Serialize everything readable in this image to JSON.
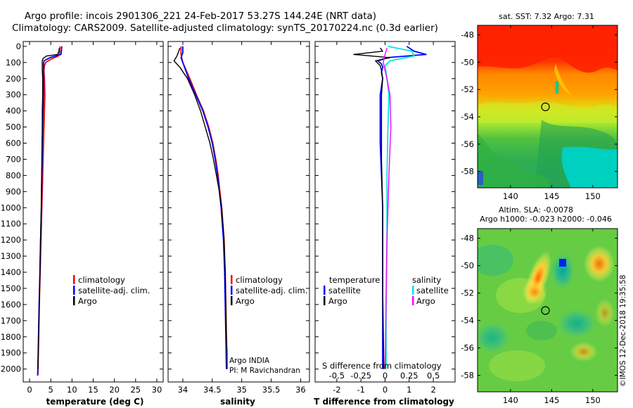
{
  "titles": {
    "line1": "Argo profile: incois 2901306_221 24-Feb-2017 53.27S 144.24E (NRT data)",
    "line2": "Climatology: CARS2009. Satellite-adjusted climatology: synTS_20170224.nc (0.3d earlier)"
  },
  "colors": {
    "climatology": "#ff0000",
    "satellite": "#0000ff",
    "argo": "#000000",
    "salinity_satellite": "#00e5e5",
    "salinity_argo": "#ff00ff"
  },
  "depth_axis": {
    "ticks": [
      0,
      100,
      200,
      300,
      400,
      500,
      600,
      700,
      800,
      900,
      1000,
      1100,
      1200,
      1300,
      1400,
      1500,
      1600,
      1700,
      1800,
      1900,
      2000
    ],
    "labels": [
      "0",
      "100",
      "200",
      "300",
      "400",
      "500",
      "600",
      "700",
      "800",
      "900",
      "1000",
      "1100",
      "1200",
      "1300",
      "1400",
      "1500",
      "1600",
      "1700",
      "1800",
      "1900",
      "2000"
    ],
    "range": [
      -30,
      2080
    ]
  },
  "chart_data": [
    {
      "type": "line",
      "id": "temperature",
      "xlabel": "temperature (deg C)",
      "xlim": [
        -1.5,
        31.5
      ],
      "xticks": [
        0,
        5,
        10,
        15,
        20,
        25,
        30
      ],
      "xtick_labels": [
        "0",
        "5",
        "10",
        "15",
        "20",
        "25",
        "30"
      ],
      "legend": [
        "climatology",
        "satellite-adj. clim.",
        "Argo"
      ],
      "series": [
        {
          "name": "climatology",
          "color": "#ff0000",
          "depth": [
            0,
            40,
            60,
            80,
            100,
            120,
            150,
            200,
            300,
            400,
            500,
            600,
            700,
            800,
            1000,
            1200,
            1400,
            1500,
            1600,
            1800,
            2000,
            2040
          ],
          "values": [
            7.2,
            7.1,
            6.8,
            5.0,
            3.8,
            3.5,
            3.4,
            3.5,
            3.6,
            3.5,
            3.4,
            3.3,
            3.2,
            3.1,
            2.9,
            2.7,
            2.5,
            2.4,
            2.3,
            2.15,
            2.0,
            1.95
          ]
        },
        {
          "name": "satellite-adj. clim.",
          "color": "#0000ff",
          "depth": [
            0,
            30,
            50,
            70,
            90,
            110,
            150,
            200,
            300,
            400,
            500,
            600,
            700,
            800,
            1000,
            1200,
            1400,
            1500,
            1600,
            1800,
            2000,
            2040
          ],
          "values": [
            7.6,
            7.5,
            7.4,
            4.8,
            3.4,
            3.3,
            3.3,
            3.3,
            3.3,
            3.2,
            3.1,
            3.0,
            3.0,
            2.9,
            2.8,
            2.6,
            2.45,
            2.35,
            2.25,
            2.1,
            1.95,
            1.9
          ]
        },
        {
          "name": "Argo",
          "color": "#000000",
          "depth": [
            10,
            30,
            50,
            60,
            75,
            90,
            110,
            150,
            200,
            300,
            400,
            500,
            700,
            1000,
            1300,
            1600,
            1900,
            2000
          ],
          "values": [
            7.0,
            6.9,
            6.6,
            4.0,
            3.2,
            3.0,
            3.0,
            3.0,
            3.1,
            3.1,
            3.0,
            3.0,
            2.9,
            2.75,
            2.5,
            2.3,
            2.05,
            2.0
          ]
        }
      ]
    },
    {
      "type": "line",
      "id": "salinity",
      "xlabel": "salinity",
      "xlim": [
        33.75,
        36.15
      ],
      "xticks": [
        34,
        34.5,
        35,
        35.5,
        36
      ],
      "xtick_labels": [
        "34",
        "34.5",
        "35",
        "35.5",
        "36"
      ],
      "legend": [
        "climatology",
        "satellite-adj. clim.",
        "Argo"
      ],
      "notes": [
        "Argo INDIA",
        "PI: M Ravichandran"
      ],
      "series": [
        {
          "name": "climatology",
          "color": "#ff0000",
          "depth": [
            0,
            50,
            100,
            200,
            300,
            400,
            500,
            600,
            700,
            800,
            1000,
            1200,
            1400,
            1600,
            1800,
            2000
          ],
          "values": [
            33.97,
            33.97,
            34.0,
            34.12,
            34.23,
            34.35,
            34.44,
            34.51,
            34.56,
            34.6,
            34.66,
            34.7,
            34.72,
            34.73,
            34.74,
            34.75
          ]
        },
        {
          "name": "satellite-adj. clim.",
          "color": "#0000ff",
          "depth": [
            0,
            40,
            70,
            100,
            200,
            300,
            400,
            500,
            600,
            700,
            800,
            1000,
            1200,
            1400,
            1600,
            1800,
            2000
          ],
          "values": [
            34.0,
            34.0,
            33.97,
            34.0,
            34.1,
            34.22,
            34.34,
            34.43,
            34.5,
            34.55,
            34.59,
            34.65,
            34.69,
            34.71,
            34.72,
            34.73,
            34.74
          ]
        },
        {
          "name": "Argo",
          "color": "#000000",
          "depth": [
            10,
            60,
            90,
            130,
            200,
            300,
            400,
            500,
            600,
            700,
            800,
            900,
            1000,
            1200,
            1400,
            1600,
            1800,
            1900,
            2000
          ],
          "values": [
            33.95,
            33.9,
            33.85,
            33.95,
            34.08,
            34.2,
            34.3,
            34.38,
            34.46,
            34.52,
            34.57,
            34.62,
            34.66,
            34.7,
            34.72,
            34.73,
            34.74,
            34.75,
            34.75
          ]
        }
      ]
    },
    {
      "type": "line",
      "id": "difference",
      "xlabel": "T difference from climatology",
      "xlabel_top": "S difference from climatology",
      "xlim": [
        -2.9,
        2.9
      ],
      "xticks": [
        -2,
        -1,
        0,
        1,
        2
      ],
      "xtick_labels": [
        "-2",
        "-1",
        "0",
        "1",
        "2"
      ],
      "top_ticks": [
        -0.5,
        -0.25,
        0,
        0.25,
        0.5
      ],
      "top_tick_labels": [
        "-0.5",
        "-0.25",
        "0",
        "0.25",
        "0.5"
      ],
      "legend_titles": [
        "temperature",
        "salinity"
      ],
      "legend_left": [
        "satellite",
        "Argo"
      ],
      "legend_right": [
        "satellite",
        "Argo"
      ],
      "series": [
        {
          "name": "T satellite",
          "color": "#0000ff",
          "depth": [
            0,
            30,
            50,
            70,
            90,
            110,
            130,
            160,
            200,
            300,
            400,
            600,
            800,
            1000,
            1500,
            2000
          ],
          "values": [
            0.9,
            1.2,
            1.7,
            0.1,
            -0.3,
            -0.15,
            -0.1,
            -0.15,
            -0.1,
            -0.2,
            -0.2,
            -0.2,
            -0.15,
            -0.1,
            -0.1,
            -0.1
          ]
        },
        {
          "name": "T Argo",
          "color": "#000000",
          "depth": [
            10,
            30,
            50,
            70,
            90,
            120,
            150,
            200,
            300,
            500,
            700,
            1000,
            1500,
            2000
          ],
          "values": [
            -0.2,
            -0.1,
            -1.3,
            0.2,
            -0.4,
            -0.2,
            -0.15,
            -0.1,
            -0.15,
            -0.15,
            -0.15,
            -0.1,
            -0.1,
            -0.05
          ]
        },
        {
          "name": "S satellite",
          "color": "#00e5e5",
          "depth": [
            0,
            30,
            60,
            90,
            120,
            200,
            300,
            500,
            800,
            1200,
            1600,
            2000
          ],
          "values": [
            0.03,
            0.28,
            0.3,
            0.05,
            0.0,
            0.02,
            0.04,
            0.03,
            0.02,
            0.02,
            0.01,
            0.01
          ]
        },
        {
          "name": "S Argo",
          "color": "#ff00ff",
          "depth": [
            10,
            50,
            100,
            150,
            200,
            300,
            500,
            800,
            1200,
            1600,
            2000
          ],
          "values": [
            0.02,
            0.0,
            -0.02,
            0.0,
            0.02,
            0.05,
            0.06,
            0.04,
            0.02,
            0.01,
            0.0
          ]
        }
      ]
    }
  ],
  "maps": [
    {
      "id": "sst",
      "title": "sat. SST: 7.32 Argo: 7.31",
      "yticks": [
        -48,
        -50,
        -52,
        -54,
        -56,
        -58
      ],
      "ytick_labels": [
        "-48",
        "-50",
        "-52",
        "-54",
        "-56",
        "-58"
      ],
      "xticks": [
        140,
        145,
        150
      ],
      "xtick_labels": [
        "140",
        "145",
        "150"
      ],
      "xlim": [
        136,
        153
      ],
      "ylim": [
        -59.2,
        -47.3
      ],
      "marker": {
        "lon": 144.24,
        "lat": -53.27
      }
    },
    {
      "id": "sla",
      "title": "Altim. SLA: -0.0078",
      "subtitle": "Argo h1000: -0.023 h2000: -0.046",
      "yticks": [
        -48,
        -50,
        -52,
        -54,
        -56,
        -58
      ],
      "ytick_labels": [
        "-48",
        "-50",
        "-52",
        "-54",
        "-56",
        "-58"
      ],
      "xticks": [
        140,
        145,
        150
      ],
      "xtick_labels": [
        "140",
        "145",
        "150"
      ],
      "xlim": [
        136,
        153
      ],
      "ylim": [
        -59.2,
        -47.3
      ],
      "marker": {
        "lon": 144.24,
        "lat": -53.27
      }
    }
  ],
  "footer": "©IMOS 12-Dec-2018 19:35:58"
}
